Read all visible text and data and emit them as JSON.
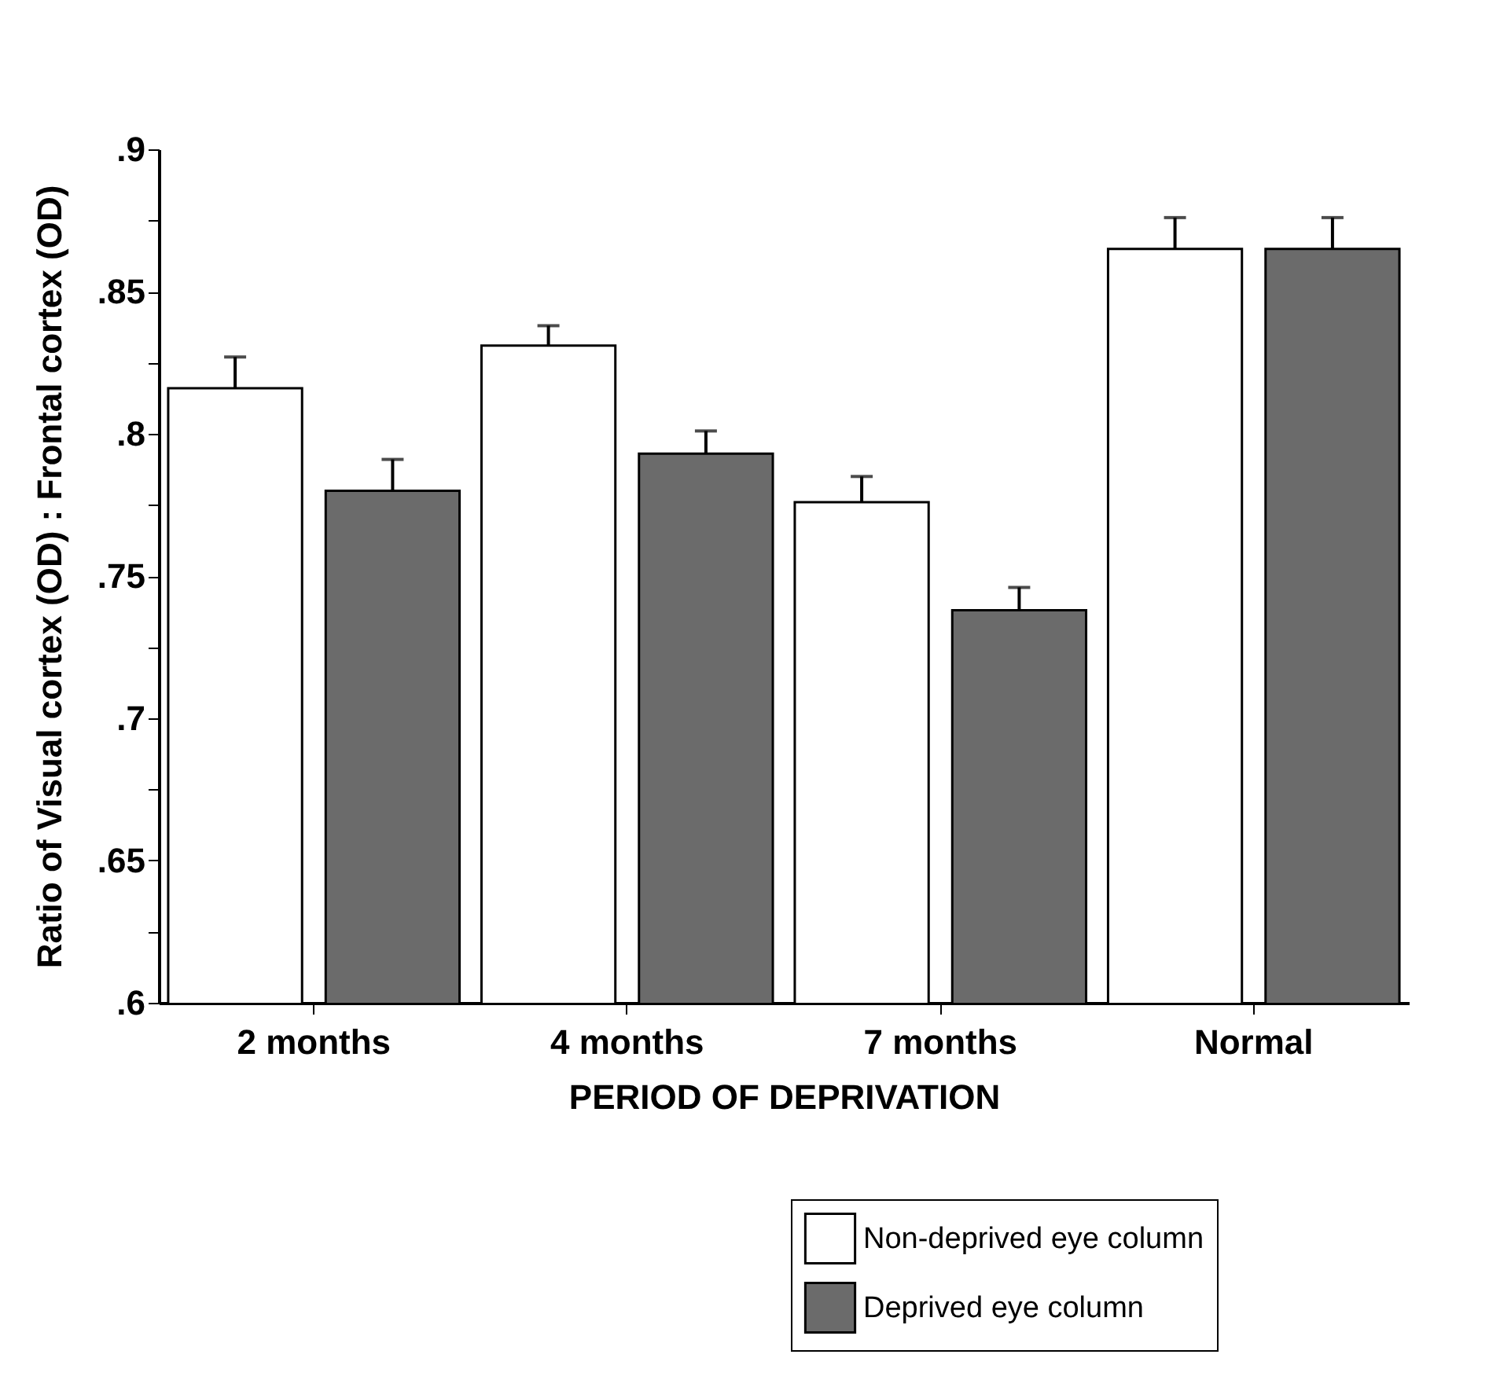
{
  "chart_data": {
    "type": "bar",
    "xlabel": "PERIOD OF DEPRIVATION",
    "ylabel": "Ratio of Visual cortex (OD) : Frontal cortex (OD)",
    "categories": [
      "2 months",
      "4 months",
      "7 months",
      "Normal"
    ],
    "series": [
      {
        "name": "Non-deprived eye column",
        "color": "#ffffff",
        "values": [
          0.816,
          0.831,
          0.776,
          0.865
        ],
        "errors": [
          [
            0.816,
            0.827
          ],
          [
            0.831,
            0.838
          ],
          [
            0.776,
            0.785
          ],
          [
            0.865,
            0.876
          ]
        ]
      },
      {
        "name": "Deprived eye column",
        "color": "#6b6b6b",
        "values": [
          0.78,
          0.793,
          0.738,
          0.865
        ],
        "errors": [
          [
            0.78,
            0.791
          ],
          [
            0.793,
            0.801
          ],
          [
            0.738,
            0.746
          ],
          [
            0.865,
            0.876
          ]
        ]
      }
    ],
    "ylim": [
      0.6,
      0.9
    ],
    "yticks": [
      {
        "value": 0.6,
        "label": ".6"
      },
      {
        "value": 0.625,
        "label": null
      },
      {
        "value": 0.65,
        "label": ".65"
      },
      {
        "value": 0.675,
        "label": null
      },
      {
        "value": 0.7,
        "label": ".7"
      },
      {
        "value": 0.725,
        "label": null
      },
      {
        "value": 0.75,
        "label": ".75"
      },
      {
        "value": 0.775,
        "label": null
      },
      {
        "value": 0.8,
        "label": ".8"
      },
      {
        "value": 0.825,
        "label": null
      },
      {
        "value": 0.85,
        "label": ".85"
      },
      {
        "value": 0.875,
        "label": null
      },
      {
        "value": 0.9,
        "label": ".9"
      }
    ],
    "legend": "bottom right"
  }
}
